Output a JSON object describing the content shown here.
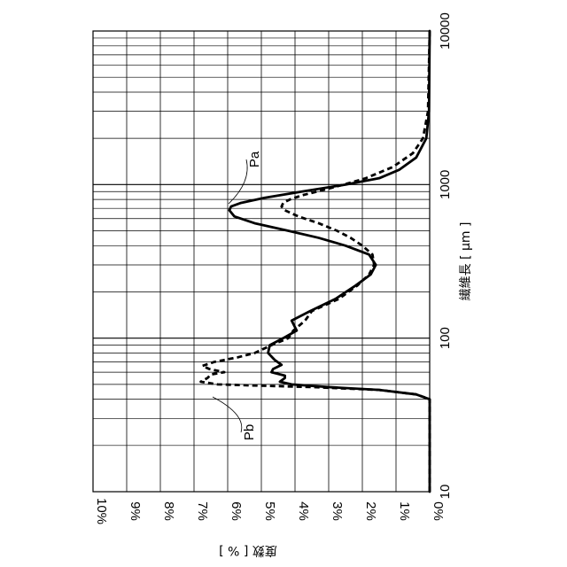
{
  "chart_data": {
    "type": "line",
    "orientation": "rotated-90",
    "xlabel": "繊維長 [ μm ]",
    "ylabel": "度数 [ % ]",
    "x_scale": "log",
    "xlim": [
      10,
      10000
    ],
    "ylim": [
      0,
      10
    ],
    "x_tick_labels": [
      "10",
      "100",
      "1000",
      "10000"
    ],
    "y_tick_labels": [
      "0%",
      "1%",
      "2%",
      "3%",
      "4%",
      "5%",
      "6%",
      "7%",
      "8%",
      "9%",
      "10%"
    ],
    "grid": true,
    "series": [
      {
        "name": "Pa",
        "style": "solid",
        "x": [
          10,
          40,
          43,
          46,
          48,
          50,
          52,
          55,
          57,
          60,
          63,
          67,
          72,
          80,
          90,
          100,
          112,
          130,
          150,
          180,
          220,
          260,
          300,
          350,
          400,
          450,
          500,
          560,
          620,
          680,
          720,
          760,
          820,
          900,
          1000,
          1100,
          1250,
          1500,
          2000,
          3000,
          10000
        ],
        "y": [
          0,
          0,
          0.4,
          1.5,
          3.0,
          4.1,
          4.45,
          4.3,
          4.3,
          4.7,
          4.65,
          4.4,
          4.6,
          4.8,
          4.75,
          4.35,
          3.95,
          4.1,
          3.55,
          2.8,
          2.2,
          1.75,
          1.6,
          1.8,
          2.5,
          3.3,
          4.2,
          5.2,
          5.8,
          5.95,
          5.9,
          5.6,
          4.9,
          3.8,
          2.5,
          1.5,
          0.9,
          0.4,
          0.1,
          0.02,
          0
        ]
      },
      {
        "name": "Pb",
        "style": "dashed",
        "x": [
          10,
          40,
          43,
          46,
          48,
          49,
          50,
          52,
          55,
          58,
          60,
          63,
          66,
          70,
          75,
          80,
          90,
          100,
          112,
          130,
          150,
          180,
          220,
          260,
          300,
          350,
          400,
          450,
          500,
          560,
          620,
          680,
          720,
          760,
          800,
          850,
          900,
          1000,
          1100,
          1300,
          1600,
          2000,
          3000,
          10000
        ],
        "y": [
          0,
          0,
          0.4,
          1.5,
          3.5,
          5.0,
          6.3,
          6.8,
          6.6,
          6.5,
          6.1,
          6.55,
          6.75,
          6.4,
          5.7,
          5.2,
          4.7,
          4.2,
          4.05,
          3.7,
          3.5,
          2.7,
          2.15,
          1.8,
          1.65,
          1.7,
          2.0,
          2.35,
          2.75,
          3.3,
          3.9,
          4.3,
          4.4,
          4.35,
          4.15,
          3.8,
          3.35,
          2.55,
          1.9,
          1.1,
          0.5,
          0.2,
          0.05,
          0
        ]
      }
    ],
    "annotations": [
      {
        "label": "Pa",
        "target_series": "Pa"
      },
      {
        "label": "Pb",
        "target_series": "Pb"
      }
    ]
  }
}
